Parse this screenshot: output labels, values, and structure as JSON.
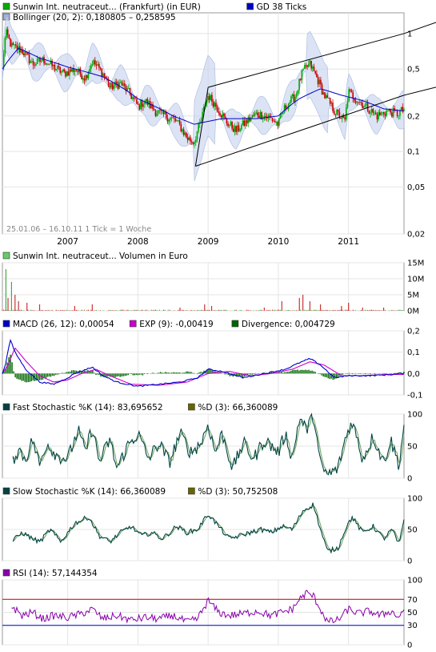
{
  "colors": {
    "up": "#00aa00",
    "down": "#cc0000",
    "ma": "#0000cc",
    "band": "#c8d4f0",
    "macd": "#0000cc",
    "signal": "#cc00cc",
    "divergence": "#006600",
    "fast_k": "#004444",
    "fast_d": "#666600",
    "slow_k": "#004444",
    "slow_d": "#666600",
    "rsi": "#8800aa",
    "rsi_upper": "#cc0000",
    "rsi_lower": "#0000cc",
    "volume": "#cc3333",
    "channel": "#000000"
  },
  "chart_data": [
    {
      "type": "line",
      "legend": [
        {
          "swatch": "#00aa00",
          "text": "Sunwin Int. neutraceut... (Frankfurt) (in EUR)"
        },
        {
          "swatch": "#0000cc",
          "text": "GD 38 Ticks"
        },
        {
          "swatch": "#a0b0d8",
          "text": "Bollinger (20, 2): 0,180805 – 0,258595"
        }
      ],
      "watermark": "25.01.06 – 16.10.11   1 Tick = 1 Woche",
      "y_scale": "log",
      "ylim": [
        0.02,
        1.5
      ],
      "yticks": [
        {
          "v": 1,
          "label": "1"
        },
        {
          "v": 0.5,
          "label": "0,5"
        },
        {
          "v": 0.2,
          "label": "0,2"
        },
        {
          "v": 0.1,
          "label": "0,1"
        },
        {
          "v": 0.05,
          "label": "0,05"
        },
        {
          "v": 0.02,
          "label": "0,02"
        }
      ],
      "x_range": [
        2006.07,
        2011.79
      ],
      "years": [
        {
          "t": 2007,
          "label": "2007"
        },
        {
          "t": 2008,
          "label": "2008"
        },
        {
          "t": 2009,
          "label": "2009"
        },
        {
          "t": 2010,
          "label": "2010"
        },
        {
          "t": 2011,
          "label": "2011"
        }
      ],
      "price_anchors": [
        [
          2006.07,
          0.5
        ],
        [
          2006.12,
          1.02
        ],
        [
          2006.2,
          0.78
        ],
        [
          2006.35,
          0.72
        ],
        [
          2006.5,
          0.55
        ],
        [
          2006.65,
          0.6
        ],
        [
          2006.8,
          0.52
        ],
        [
          2006.95,
          0.46
        ],
        [
          2007.1,
          0.5
        ],
        [
          2007.25,
          0.42
        ],
        [
          2007.35,
          0.58
        ],
        [
          2007.5,
          0.46
        ],
        [
          2007.6,
          0.35
        ],
        [
          2007.75,
          0.38
        ],
        [
          2007.9,
          0.3
        ],
        [
          2008.0,
          0.24
        ],
        [
          2008.1,
          0.27
        ],
        [
          2008.25,
          0.22
        ],
        [
          2008.4,
          0.2
        ],
        [
          2008.55,
          0.18
        ],
        [
          2008.7,
          0.13
        ],
        [
          2008.8,
          0.12
        ],
        [
          2008.9,
          0.18
        ],
        [
          2009.0,
          0.3
        ],
        [
          2009.1,
          0.25
        ],
        [
          2009.25,
          0.18
        ],
        [
          2009.4,
          0.15
        ],
        [
          2009.5,
          0.17
        ],
        [
          2009.7,
          0.21
        ],
        [
          2009.9,
          0.19
        ],
        [
          2010.0,
          0.17
        ],
        [
          2010.1,
          0.24
        ],
        [
          2010.25,
          0.3
        ],
        [
          2010.35,
          0.48
        ],
        [
          2010.45,
          0.55
        ],
        [
          2010.55,
          0.42
        ],
        [
          2010.65,
          0.3
        ],
        [
          2010.8,
          0.22
        ],
        [
          2010.95,
          0.18
        ],
        [
          2011.0,
          0.32
        ],
        [
          2011.1,
          0.28
        ],
        [
          2011.25,
          0.24
        ],
        [
          2011.4,
          0.2
        ],
        [
          2011.55,
          0.22
        ],
        [
          2011.7,
          0.21
        ],
        [
          2011.79,
          0.23
        ]
      ],
      "ma_anchors": [
        [
          2006.07,
          0.5
        ],
        [
          2006.3,
          0.75
        ],
        [
          2006.6,
          0.62
        ],
        [
          2007.0,
          0.52
        ],
        [
          2007.5,
          0.43
        ],
        [
          2008.0,
          0.28
        ],
        [
          2008.5,
          0.2
        ],
        [
          2008.8,
          0.17
        ],
        [
          2009.2,
          0.19
        ],
        [
          2009.7,
          0.19
        ],
        [
          2010.0,
          0.2
        ],
        [
          2010.3,
          0.28
        ],
        [
          2010.6,
          0.34
        ],
        [
          2010.9,
          0.3
        ],
        [
          2011.2,
          0.27
        ],
        [
          2011.5,
          0.23
        ],
        [
          2011.79,
          0.22
        ]
      ],
      "channel": {
        "upper": {
          "t0": 2009.0,
          "v0": 0.35,
          "t1": 2011.79,
          "v1": 1.0
        },
        "lower": {
          "t0": 2008.82,
          "v0": 0.075,
          "t1": 2011.79,
          "v1": 0.3
        },
        "left_edge_t": 2008.82
      }
    },
    {
      "type": "bar",
      "legend": [
        {
          "swatch": "#66cc66",
          "text": "Sunwin Int. neutraceut... Volumen in Euro"
        }
      ],
      "ylim": [
        0,
        15
      ],
      "yticks": [
        {
          "v": 15,
          "label": "15M"
        },
        {
          "v": 10,
          "label": "10M"
        },
        {
          "v": 5,
          "label": "5M"
        },
        {
          "v": 0,
          "label": "0M"
        }
      ],
      "spikes_millions": [
        [
          2006.12,
          13
        ],
        [
          2006.15,
          4
        ],
        [
          2006.2,
          9
        ],
        [
          2006.25,
          5
        ],
        [
          2006.3,
          3
        ],
        [
          2006.42,
          2.5
        ],
        [
          2006.6,
          2
        ],
        [
          2007.1,
          1.5
        ],
        [
          2007.35,
          2
        ],
        [
          2008.6,
          1
        ],
        [
          2008.95,
          2
        ],
        [
          2009.05,
          1.5
        ],
        [
          2009.8,
          1
        ],
        [
          2010.05,
          3
        ],
        [
          2010.3,
          4
        ],
        [
          2010.35,
          5
        ],
        [
          2010.45,
          3
        ],
        [
          2010.6,
          2
        ],
        [
          2010.9,
          1.5
        ],
        [
          2011.0,
          2.5
        ],
        [
          2011.2,
          1
        ],
        [
          2011.5,
          1
        ]
      ]
    },
    {
      "type": "line",
      "legend": [
        {
          "swatch": "#0000cc",
          "text": "MACD (26, 12): 0,00054"
        },
        {
          "swatch": "#cc00cc",
          "text": "EXP (9): -0,00419"
        },
        {
          "swatch": "#006600",
          "text": "Divergence: 0,004729"
        }
      ],
      "ylim": [
        -0.1,
        0.2
      ],
      "yticks": [
        {
          "v": 0.2,
          "label": "0,2"
        },
        {
          "v": 0.1,
          "label": "0,1"
        },
        {
          "v": 0,
          "label": "0,0"
        },
        {
          "v": -0.1,
          "label": "-0,1"
        }
      ],
      "macd_anchors": [
        [
          2006.07,
          0.0
        ],
        [
          2006.12,
          0.05
        ],
        [
          2006.18,
          0.16
        ],
        [
          2006.25,
          0.1
        ],
        [
          2006.4,
          0.02
        ],
        [
          2006.6,
          -0.04
        ],
        [
          2006.8,
          -0.05
        ],
        [
          2007.0,
          -0.02
        ],
        [
          2007.1,
          0.0
        ],
        [
          2007.35,
          0.03
        ],
        [
          2007.5,
          -0.01
        ],
        [
          2007.7,
          -0.04
        ],
        [
          2008.0,
          -0.06
        ],
        [
          2008.3,
          -0.05
        ],
        [
          2008.6,
          -0.04
        ],
        [
          2008.85,
          -0.02
        ],
        [
          2009.0,
          0.02
        ],
        [
          2009.2,
          0.01
        ],
        [
          2009.5,
          -0.02
        ],
        [
          2009.8,
          0.0
        ],
        [
          2010.1,
          0.02
        ],
        [
          2010.3,
          0.05
        ],
        [
          2010.45,
          0.07
        ],
        [
          2010.6,
          0.04
        ],
        [
          2010.8,
          -0.02
        ],
        [
          2011.0,
          -0.01
        ],
        [
          2011.3,
          -0.01
        ],
        [
          2011.6,
          -0.005
        ],
        [
          2011.79,
          0.001
        ]
      ],
      "signal_anchors": [
        [
          2006.07,
          0.0
        ],
        [
          2006.15,
          0.04
        ],
        [
          2006.25,
          0.12
        ],
        [
          2006.4,
          0.06
        ],
        [
          2006.6,
          -0.01
        ],
        [
          2006.8,
          -0.04
        ],
        [
          2007.0,
          -0.03
        ],
        [
          2007.2,
          0.0
        ],
        [
          2007.4,
          0.02
        ],
        [
          2007.6,
          -0.01
        ],
        [
          2007.9,
          -0.05
        ],
        [
          2008.3,
          -0.055
        ],
        [
          2008.7,
          -0.04
        ],
        [
          2009.0,
          0.0
        ],
        [
          2009.3,
          0.01
        ],
        [
          2009.6,
          -0.01
        ],
        [
          2009.9,
          0.0
        ],
        [
          2010.2,
          0.02
        ],
        [
          2010.45,
          0.055
        ],
        [
          2010.65,
          0.04
        ],
        [
          2010.9,
          -0.01
        ],
        [
          2011.2,
          -0.01
        ],
        [
          2011.5,
          -0.005
        ],
        [
          2011.79,
          -0.004
        ]
      ]
    },
    {
      "type": "line",
      "legend": [
        {
          "swatch": "#004444",
          "text": "Fast Stochastic %K (14): 83,695652"
        },
        {
          "swatch": "#666600",
          "text": "%D (3): 66,360089"
        }
      ],
      "ylim": [
        0,
        100
      ],
      "yticks": [
        {
          "v": 100,
          "label": "100"
        },
        {
          "v": 50,
          "label": "50"
        },
        {
          "v": 0,
          "label": "0"
        }
      ],
      "k_anchors": [
        [
          2006.07,
          40
        ],
        [
          2006.2,
          25
        ],
        [
          2006.3,
          45
        ],
        [
          2006.4,
          30
        ],
        [
          2006.5,
          60
        ],
        [
          2006.6,
          20
        ],
        [
          2006.7,
          55
        ],
        [
          2006.85,
          35
        ],
        [
          2007.0,
          30
        ],
        [
          2007.15,
          75
        ],
        [
          2007.25,
          40
        ],
        [
          2007.35,
          80
        ],
        [
          2007.45,
          25
        ],
        [
          2007.6,
          60
        ],
        [
          2007.7,
          15
        ],
        [
          2007.85,
          50
        ],
        [
          2008.0,
          70
        ],
        [
          2008.15,
          30
        ],
        [
          2008.3,
          55
        ],
        [
          2008.45,
          25
        ],
        [
          2008.6,
          70
        ],
        [
          2008.75,
          40
        ],
        [
          2008.9,
          55
        ],
        [
          2009.0,
          85
        ],
        [
          2009.1,
          40
        ],
        [
          2009.2,
          70
        ],
        [
          2009.35,
          15
        ],
        [
          2009.5,
          55
        ],
        [
          2009.65,
          30
        ],
        [
          2009.8,
          60
        ],
        [
          2010.0,
          40
        ],
        [
          2010.1,
          70
        ],
        [
          2010.2,
          30
        ],
        [
          2010.3,
          95
        ],
        [
          2010.4,
          75
        ],
        [
          2010.5,
          100
        ],
        [
          2010.6,
          20
        ],
        [
          2010.7,
          5
        ],
        [
          2010.85,
          15
        ],
        [
          2010.95,
          60
        ],
        [
          2011.05,
          90
        ],
        [
          2011.2,
          30
        ],
        [
          2011.35,
          65
        ],
        [
          2011.5,
          25
        ],
        [
          2011.6,
          60
        ],
        [
          2011.72,
          20
        ],
        [
          2011.79,
          84
        ]
      ]
    },
    {
      "type": "line",
      "legend": [
        {
          "swatch": "#004444",
          "text": "Slow Stochastic %K (14): 66,360089"
        },
        {
          "swatch": "#666600",
          "text": "%D (3): 50,752508"
        }
      ],
      "ylim": [
        0,
        100
      ],
      "yticks": [
        {
          "v": 100,
          "label": "100"
        },
        {
          "v": 50,
          "label": "50"
        },
        {
          "v": 0,
          "label": "0"
        }
      ],
      "k_anchors": [
        [
          2006.07,
          45
        ],
        [
          2006.2,
          30
        ],
        [
          2006.35,
          45
        ],
        [
          2006.5,
          35
        ],
        [
          2006.6,
          30
        ],
        [
          2006.75,
          50
        ],
        [
          2006.9,
          30
        ],
        [
          2007.1,
          60
        ],
        [
          2007.3,
          70
        ],
        [
          2007.45,
          40
        ],
        [
          2007.6,
          30
        ],
        [
          2007.75,
          45
        ],
        [
          2007.9,
          55
        ],
        [
          2008.05,
          40
        ],
        [
          2008.2,
          45
        ],
        [
          2008.35,
          35
        ],
        [
          2008.55,
          55
        ],
        [
          2008.7,
          45
        ],
        [
          2008.85,
          50
        ],
        [
          2009.0,
          75
        ],
        [
          2009.15,
          55
        ],
        [
          2009.3,
          35
        ],
        [
          2009.45,
          40
        ],
        [
          2009.6,
          45
        ],
        [
          2009.75,
          50
        ],
        [
          2009.9,
          45
        ],
        [
          2010.05,
          55
        ],
        [
          2010.2,
          50
        ],
        [
          2010.35,
          80
        ],
        [
          2010.5,
          90
        ],
        [
          2010.6,
          50
        ],
        [
          2010.7,
          15
        ],
        [
          2010.85,
          20
        ],
        [
          2010.95,
          50
        ],
        [
          2011.05,
          70
        ],
        [
          2011.2,
          45
        ],
        [
          2011.35,
          55
        ],
        [
          2011.5,
          35
        ],
        [
          2011.62,
          50
        ],
        [
          2011.72,
          25
        ],
        [
          2011.79,
          66
        ]
      ]
    },
    {
      "type": "line",
      "legend": [
        {
          "swatch": "#8800aa",
          "text": "RSI (14): 57,144354"
        }
      ],
      "ylim": [
        0,
        100
      ],
      "yticks": [
        {
          "v": 100,
          "label": "100"
        },
        {
          "v": 70,
          "label": "70"
        },
        {
          "v": 50,
          "label": "50"
        },
        {
          "v": 30,
          "label": "30"
        },
        {
          "v": 0,
          "label": "0"
        }
      ],
      "upper_band": 70,
      "lower_band": 30,
      "rsi_anchors": [
        [
          2006.07,
          55
        ],
        [
          2006.2,
          60
        ],
        [
          2006.35,
          45
        ],
        [
          2006.5,
          50
        ],
        [
          2006.65,
          40
        ],
        [
          2006.8,
          45
        ],
        [
          2007.0,
          42
        ],
        [
          2007.2,
          48
        ],
        [
          2007.35,
          55
        ],
        [
          2007.5,
          40
        ],
        [
          2007.7,
          45
        ],
        [
          2007.9,
          38
        ],
        [
          2008.1,
          42
        ],
        [
          2008.3,
          40
        ],
        [
          2008.5,
          45
        ],
        [
          2008.7,
          35
        ],
        [
          2008.85,
          40
        ],
        [
          2009.0,
          68
        ],
        [
          2009.15,
          50
        ],
        [
          2009.3,
          45
        ],
        [
          2009.5,
          48
        ],
        [
          2009.7,
          52
        ],
        [
          2009.9,
          45
        ],
        [
          2010.05,
          50
        ],
        [
          2010.2,
          55
        ],
        [
          2010.3,
          70
        ],
        [
          2010.4,
          80
        ],
        [
          2010.5,
          75
        ],
        [
          2010.6,
          55
        ],
        [
          2010.7,
          35
        ],
        [
          2010.85,
          38
        ],
        [
          2011.0,
          55
        ],
        [
          2011.15,
          48
        ],
        [
          2011.3,
          52
        ],
        [
          2011.45,
          45
        ],
        [
          2011.6,
          52
        ],
        [
          2011.72,
          42
        ],
        [
          2011.79,
          57
        ]
      ]
    }
  ]
}
